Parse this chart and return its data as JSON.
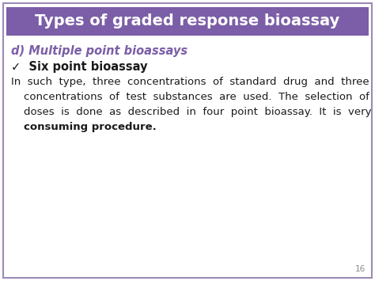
{
  "title": "Types of graded response bioassay",
  "title_bg_color": "#7B5EA7",
  "title_text_color": "#FFFFFF",
  "title_fontsize": 14,
  "bg_color": "#FFFFFF",
  "border_color": "#9B8BB7",
  "subtitle_text": "d) Multiple point bioassays",
  "subtitle_color": "#7B5EA7",
  "subtitle_fontsize": 10.5,
  "bullet_text": "✓  Six point bioassay",
  "bullet_fontsize": 10.5,
  "bullet_color": "#1a1a1a",
  "body_line1": "In  such  type,  three  concentrations  of  standard  drug  and  three",
  "body_line2": "concentrations  of  test  substances  are  used.  The  selection  of",
  "body_line3": "doses  is  done  as  described  in  four  point  bioassay.  It  is  very  time",
  "body_line4": "consuming procedure.",
  "body_fontsize": 9.5,
  "body_color": "#1a1a1a",
  "page_number": "16",
  "page_number_color": "#888888",
  "page_number_fontsize": 7.5
}
